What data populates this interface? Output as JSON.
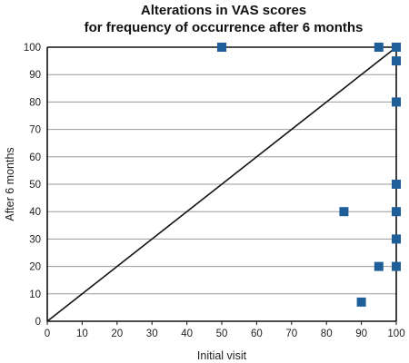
{
  "chart_data": {
    "type": "scatter",
    "title": [
      "Alterations in VAS scores",
      "for frequency of occurrence after 6 months"
    ],
    "xlabel": "Initial visit",
    "ylabel": "After 6 months",
    "xlim": [
      0,
      100
    ],
    "ylim": [
      0,
      100
    ],
    "x_ticks": [
      "0",
      "10",
      "20",
      "30",
      "40",
      "50",
      "60",
      "70",
      "80",
      "90",
      "100"
    ],
    "y_ticks": [
      "0",
      "10",
      "20",
      "30",
      "40",
      "50",
      "60",
      "70",
      "80",
      "90",
      "100"
    ],
    "grid": "horizontal",
    "reference_line": {
      "from": [
        0,
        0
      ],
      "to": [
        100,
        100
      ]
    },
    "marker_color": "#1f5f99",
    "points": [
      {
        "x": 50,
        "y": 100
      },
      {
        "x": 95,
        "y": 100
      },
      {
        "x": 100,
        "y": 100
      },
      {
        "x": 100,
        "y": 95
      },
      {
        "x": 100,
        "y": 80
      },
      {
        "x": 100,
        "y": 50
      },
      {
        "x": 85,
        "y": 40
      },
      {
        "x": 100,
        "y": 40
      },
      {
        "x": 100,
        "y": 30
      },
      {
        "x": 95,
        "y": 20
      },
      {
        "x": 100,
        "y": 20
      },
      {
        "x": 90,
        "y": 7
      }
    ]
  }
}
